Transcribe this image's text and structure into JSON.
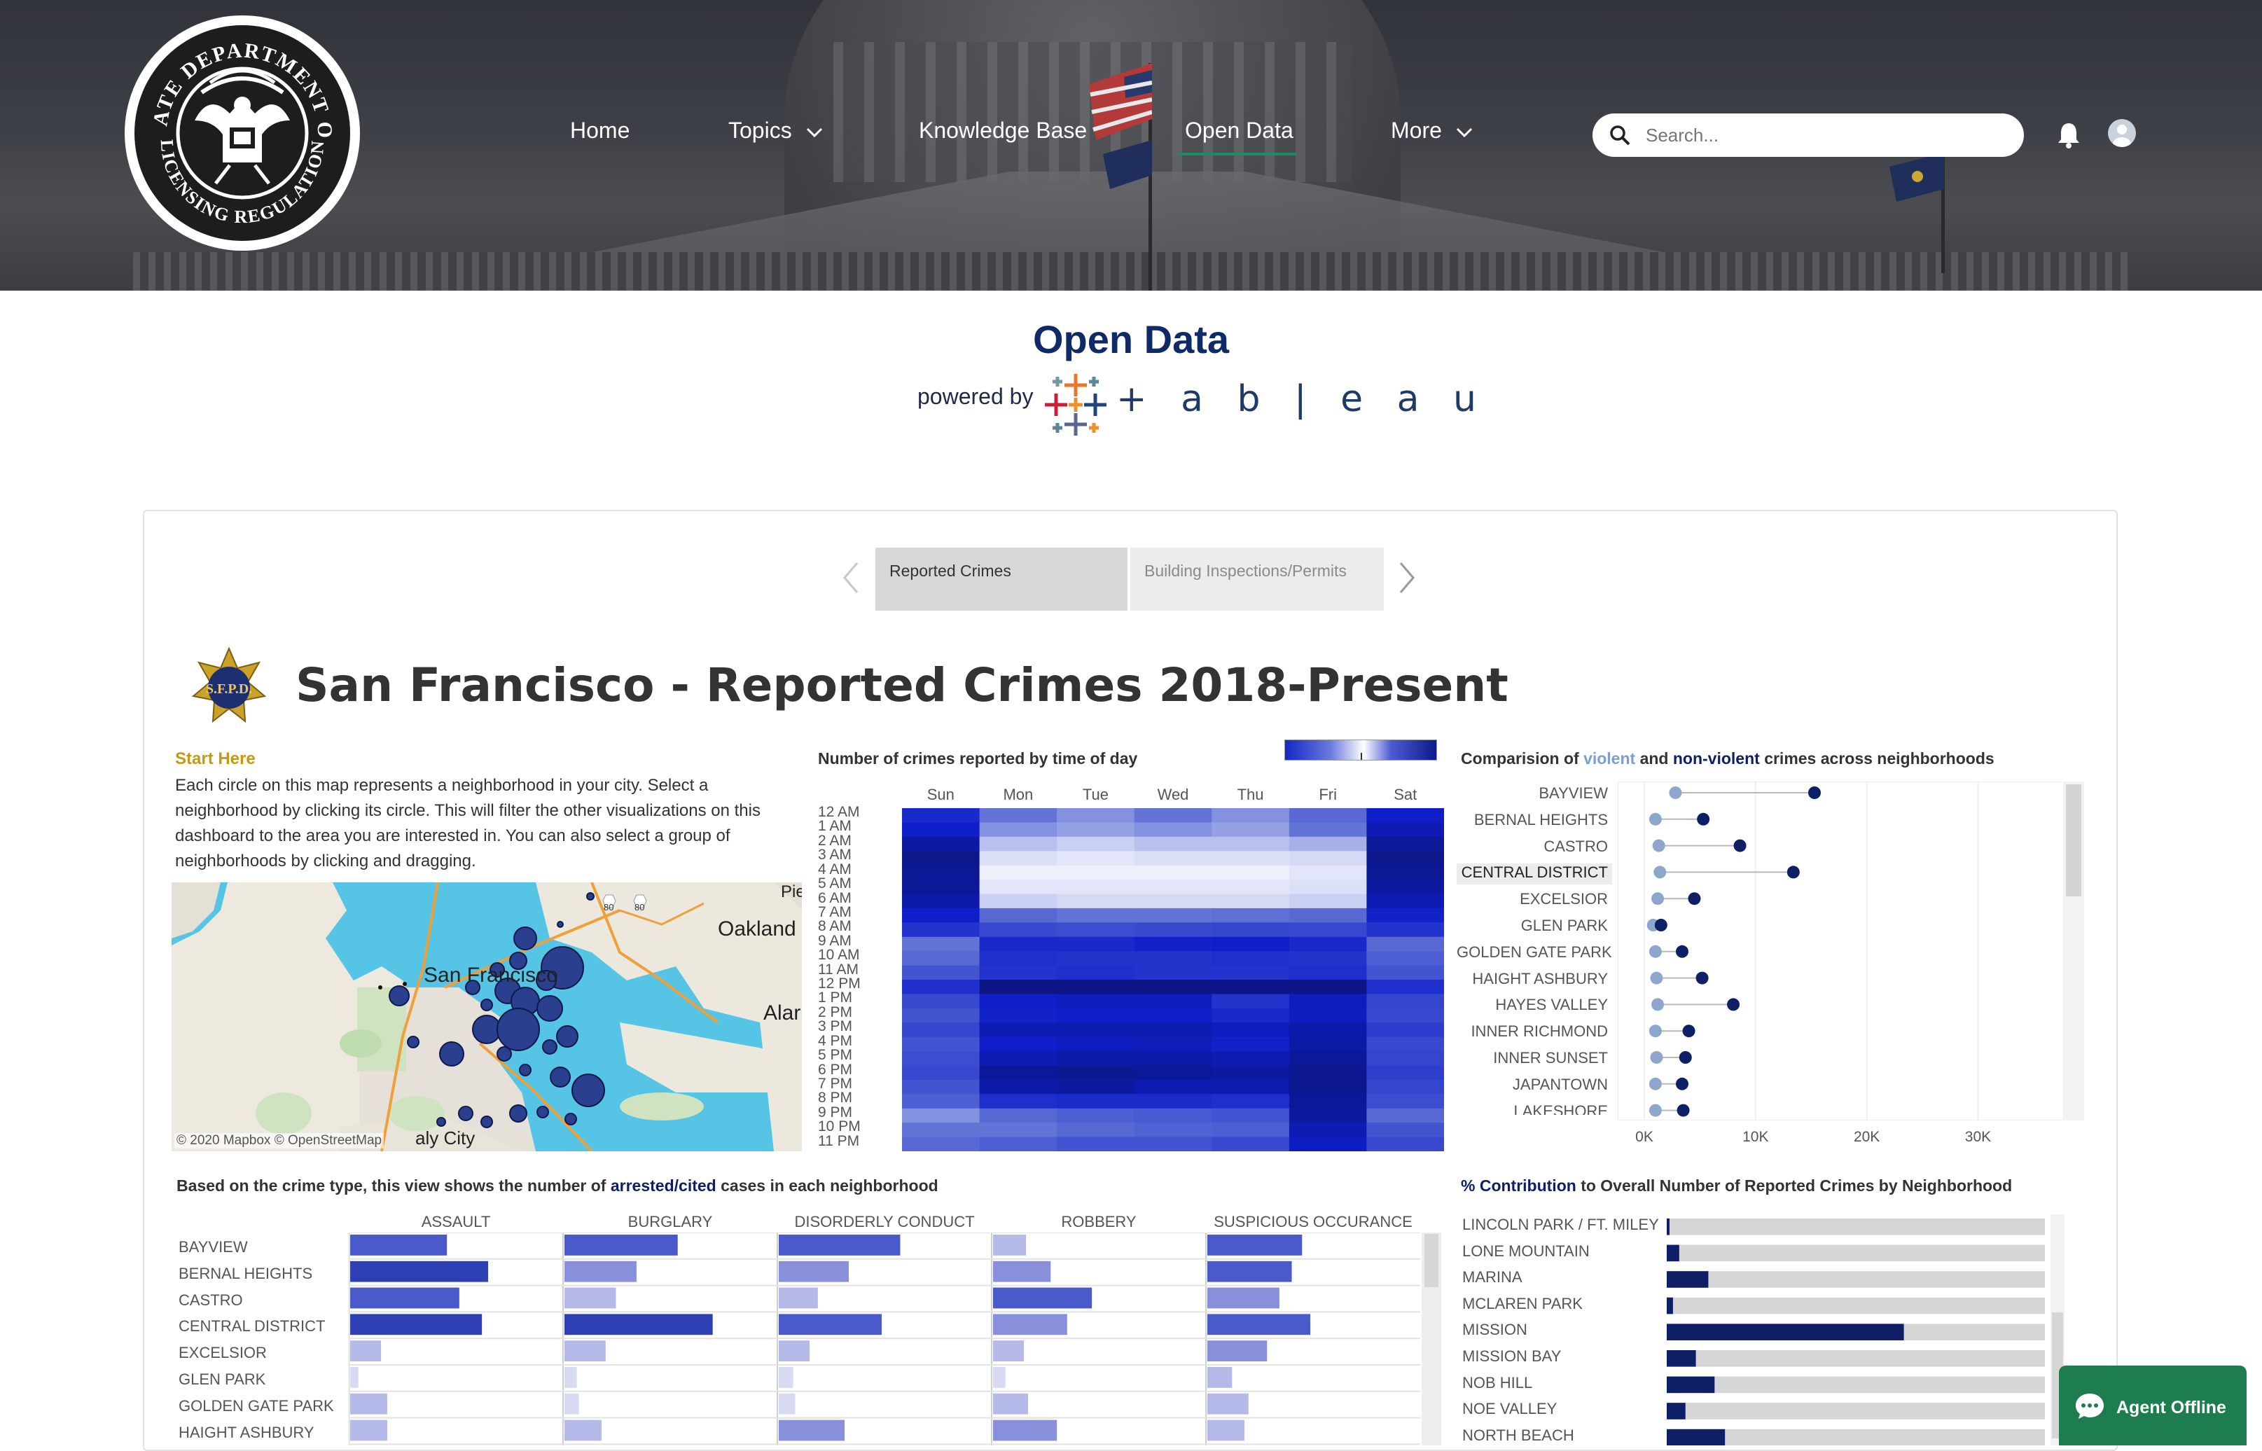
{
  "logo": {
    "text_top": "STATE DEPARTMENT OF",
    "text_bottom": "LICENSING REGULATION"
  },
  "nav": {
    "items": [
      {
        "label": "Home"
      },
      {
        "label": "Topics"
      },
      {
        "label": "Knowledge Base"
      },
      {
        "label": "Open Data"
      },
      {
        "label": "More"
      }
    ],
    "active": "Open Data"
  },
  "search": {
    "placeholder": "Search..."
  },
  "page": {
    "title": "Open Data",
    "powered_by": "powered by",
    "brand": "+ a b | e a u"
  },
  "tabs": [
    {
      "label": "Reported Crimes"
    },
    {
      "label": "Building Inspections/Permits"
    }
  ],
  "dashboard": {
    "badge": "S.F.P.D.",
    "title": "San Francisco - Reported Crimes 2018-Present",
    "start_here": "Start Here",
    "intro": "Each circle on this map represents a neighborhood in your city. Select a neighborhood by clicking its circle. This will filter the other visualizations on this dashboard to the area you are interested in. You can also select a group of neighborhoods by clicking and dragging.",
    "map": {
      "labels": [
        "Pie",
        "Oakland",
        "San Francisco",
        "Alar",
        "aly City"
      ],
      "credit": "© 2020 Mapbox  © OpenStreetMap",
      "highways": [
        "80",
        "80"
      ]
    }
  },
  "heatmap": {
    "title": "Number of crimes reported by time of day",
    "days": [
      "Sun",
      "Mon",
      "Tue",
      "Wed",
      "Thu",
      "Fri",
      "Sat"
    ],
    "hours": [
      "12 AM",
      "1 AM",
      "2 AM",
      "3 AM",
      "4 AM",
      "5 AM",
      "6 AM",
      "7 AM",
      "8 AM",
      "9 AM",
      "10 AM",
      "11 AM",
      "12 PM",
      "1 PM",
      "2 PM",
      "3 PM",
      "4 PM",
      "5 PM",
      "6 PM",
      "7 PM",
      "8 PM",
      "9 PM",
      "10 PM",
      "11 PM"
    ]
  },
  "comparison": {
    "title_pre": "Comparision of",
    "title_violent": "violent",
    "title_and": "and",
    "title_nonviolent": "non-violent",
    "title_post": "crimes across neighborhoods",
    "highlight": "CENTRAL DISTRICT",
    "ticks": [
      "0K",
      "10K",
      "20K",
      "30K"
    ],
    "neighborhoods": [
      "BAYVIEW",
      "BERNAL HEIGHTS",
      "CASTRO",
      "CENTRAL DISTRICT",
      "EXCELSIOR",
      "GLEN PARK",
      "GOLDEN GATE PARK",
      "HAIGHT ASHBURY",
      "HAYES VALLEY",
      "INNER RICHMOND",
      "INNER SUNSET",
      "JAPANTOWN",
      "LAKESHORE"
    ]
  },
  "arrests": {
    "title_pre": "Based on the crime type, this view shows the number of",
    "title_key": "arrested/cited",
    "title_post": "cases in each neighborhood",
    "columns": [
      "ASSAULT",
      "BURGLARY",
      "DISORDERLY CONDUCT",
      "ROBBERY",
      "SUSPICIOUS OCCURANCE"
    ],
    "rows": [
      "BAYVIEW",
      "BERNAL HEIGHTS",
      "CASTRO",
      "CENTRAL DISTRICT",
      "EXCELSIOR",
      "GLEN PARK",
      "GOLDEN GATE PARK",
      "HAIGHT ASHBURY"
    ]
  },
  "contribution": {
    "title_key": "% Contribution",
    "title_post": "to Overall Number of Reported Crimes by Neighborhood",
    "neighborhoods": [
      "LINCOLN PARK / FT. MILEY",
      "LONE MOUNTAIN",
      "MARINA",
      "MCLAREN PARK",
      "MISSION",
      "MISSION BAY",
      "NOB HILL",
      "NOE VALLEY",
      "NORTH BEACH"
    ]
  },
  "chat": {
    "label": "Agent Offline"
  },
  "chart_data": [
    {
      "type": "heatmap",
      "title": "Number of crimes reported by time of day",
      "x": [
        "Sun",
        "Mon",
        "Tue",
        "Wed",
        "Thu",
        "Fri",
        "Sat"
      ],
      "y": [
        "12 AM",
        "1 AM",
        "2 AM",
        "3 AM",
        "4 AM",
        "5 AM",
        "6 AM",
        "7 AM",
        "8 AM",
        "9 AM",
        "10 AM",
        "11 AM",
        "12 PM",
        "1 PM",
        "2 PM",
        "3 PM",
        "4 PM",
        "5 PM",
        "6 PM",
        "7 PM",
        "8 PM",
        "9 PM",
        "10 PM",
        "11 PM"
      ],
      "values": [
        [
          0.75,
          0.4,
          0.35,
          0.4,
          0.35,
          0.45,
          0.8
        ],
        [
          0.8,
          0.35,
          0.3,
          0.35,
          0.3,
          0.4,
          0.85
        ],
        [
          0.9,
          0.2,
          0.15,
          0.2,
          0.2,
          0.25,
          0.92
        ],
        [
          0.95,
          0.1,
          0.08,
          0.1,
          0.1,
          0.12,
          0.95
        ],
        [
          0.93,
          0.05,
          0.05,
          0.05,
          0.05,
          0.08,
          0.93
        ],
        [
          0.92,
          0.08,
          0.08,
          0.08,
          0.08,
          0.1,
          0.9
        ],
        [
          0.88,
          0.15,
          0.12,
          0.12,
          0.12,
          0.15,
          0.85
        ],
        [
          0.8,
          0.45,
          0.4,
          0.4,
          0.42,
          0.45,
          0.78
        ],
        [
          0.7,
          0.6,
          0.58,
          0.6,
          0.62,
          0.6,
          0.7
        ],
        [
          0.4,
          0.75,
          0.75,
          0.78,
          0.8,
          0.75,
          0.45
        ],
        [
          0.45,
          0.72,
          0.7,
          0.7,
          0.72,
          0.7,
          0.5
        ],
        [
          0.55,
          0.7,
          0.72,
          0.7,
          0.7,
          0.72,
          0.55
        ],
        [
          0.72,
          0.97,
          0.96,
          0.97,
          0.96,
          0.96,
          0.72
        ],
        [
          0.6,
          0.8,
          0.82,
          0.82,
          0.7,
          0.82,
          0.62
        ],
        [
          0.55,
          0.78,
          0.8,
          0.8,
          0.75,
          0.82,
          0.6
        ],
        [
          0.62,
          0.85,
          0.86,
          0.86,
          0.82,
          0.88,
          0.66
        ],
        [
          0.55,
          0.8,
          0.82,
          0.84,
          0.78,
          0.88,
          0.6
        ],
        [
          0.58,
          0.85,
          0.88,
          0.88,
          0.85,
          0.92,
          0.62
        ],
        [
          0.6,
          0.92,
          0.94,
          0.92,
          0.9,
          0.94,
          0.65
        ],
        [
          0.55,
          0.88,
          0.9,
          0.86,
          0.86,
          0.94,
          0.62
        ],
        [
          0.5,
          0.72,
          0.74,
          0.74,
          0.72,
          0.92,
          0.58
        ],
        [
          0.35,
          0.45,
          0.5,
          0.52,
          0.55,
          0.9,
          0.45
        ],
        [
          0.4,
          0.4,
          0.45,
          0.48,
          0.5,
          0.85,
          0.55
        ],
        [
          0.45,
          0.5,
          0.55,
          0.55,
          0.6,
          0.82,
          0.6
        ]
      ]
    },
    {
      "type": "scatter",
      "title": "Comparision of violent and non-violent crimes across neighborhoods",
      "categories": [
        "BAYVIEW",
        "BERNAL HEIGHTS",
        "CASTRO",
        "CENTRAL DISTRICT",
        "EXCELSIOR",
        "GLEN PARK",
        "GOLDEN GATE PARK",
        "HAIGHT ASHBURY",
        "HAYES VALLEY",
        "INNER RICHMOND",
        "INNER SUNSET",
        "JAPANTOWN",
        "LAKESHORE"
      ],
      "series": [
        {
          "name": "violent",
          "values": [
            2800,
            1000,
            1300,
            1400,
            1200,
            800,
            1000,
            1100,
            1200,
            1000,
            1100,
            1000,
            1000
          ],
          "color": "#8ea6cc"
        },
        {
          "name": "non-violent",
          "values": [
            15300,
            5300,
            8600,
            13400,
            4500,
            1500,
            3400,
            5200,
            8000,
            4000,
            3700,
            3400,
            3500
          ],
          "color": "#0f1f66"
        }
      ],
      "xlim": [
        0,
        34000
      ],
      "ticks": [
        "0K",
        "10K",
        "20K",
        "30K"
      ]
    },
    {
      "type": "bar",
      "title": "Based on the crime type, this view shows the number of arrested/cited cases in each neighborhood",
      "categories": [
        "BAYVIEW",
        "BERNAL HEIGHTS",
        "CASTRO",
        "CENTRAL DISTRICT",
        "EXCELSIOR",
        "GLEN PARK",
        "GOLDEN GATE PARK",
        "HAIGHT ASHBURY"
      ],
      "series": [
        {
          "name": "ASSAULT",
          "values": [
            0.47,
            0.67,
            0.53,
            0.64,
            0.15,
            0.04,
            0.18,
            0.18
          ]
        },
        {
          "name": "BURGLARY",
          "values": [
            0.55,
            0.35,
            0.25,
            0.72,
            0.2,
            0.06,
            0.07,
            0.18
          ]
        },
        {
          "name": "DISORDERLY CONDUCT",
          "values": [
            0.59,
            0.34,
            0.19,
            0.5,
            0.15,
            0.07,
            0.08,
            0.32
          ]
        },
        {
          "name": "ROBBERY",
          "values": [
            0.16,
            0.28,
            0.48,
            0.36,
            0.15,
            0.06,
            0.17,
            0.31
          ]
        },
        {
          "name": "SUSPICIOUS OCCURANCE",
          "values": [
            0.46,
            0.41,
            0.35,
            0.5,
            0.29,
            0.12,
            0.2,
            0.18
          ]
        }
      ]
    },
    {
      "type": "bar",
      "title": "% Contribution to Overall Number of Reported Crimes by Neighborhood",
      "categories": [
        "LINCOLN PARK / FT. MILEY",
        "LONE MOUNTAIN",
        "MARINA",
        "MCLAREN PARK",
        "MISSION",
        "MISSION BAY",
        "NOB HILL",
        "NOE VALLEY",
        "NORTH BEACH"
      ],
      "values": [
        0.1,
        0.6,
        2.0,
        0.3,
        11.4,
        1.4,
        2.3,
        0.9,
        2.8
      ],
      "xlim": [
        0,
        100
      ]
    }
  ]
}
